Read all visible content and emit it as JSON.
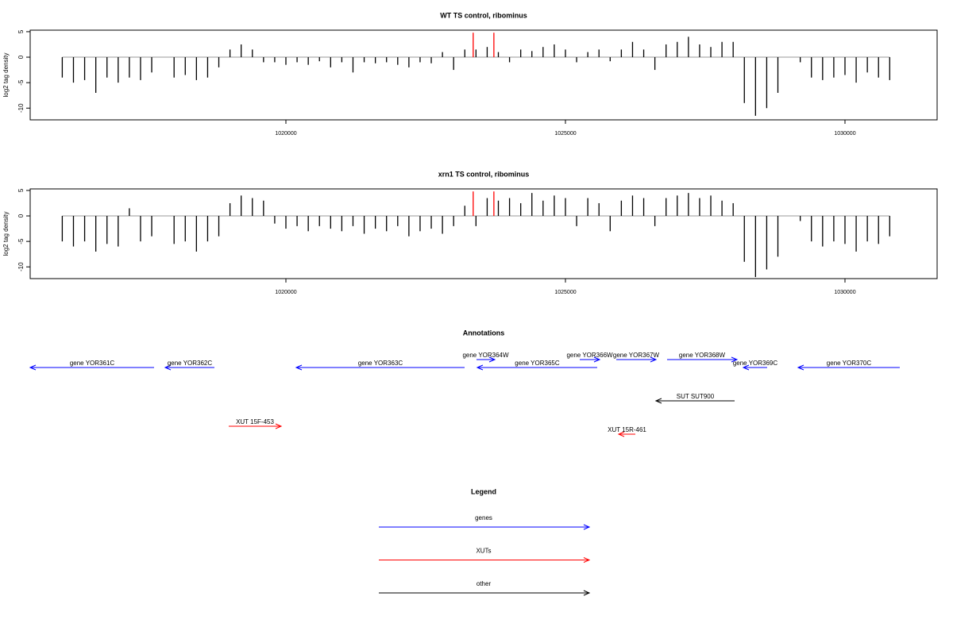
{
  "chart_data": [
    {
      "type": "bar",
      "title": "WT TS control, ribominus",
      "y_label": "log2 tag density",
      "xlim": [
        1015426,
        1031648
      ],
      "xticks": [
        1020000,
        1025000,
        1030000
      ],
      "ylim": [
        -12.3,
        5.3
      ],
      "yticks": [
        5,
        0,
        -5,
        -10
      ],
      "series": [
        {
          "color": "#000000",
          "x": [
            1016000,
            1016200,
            1016400,
            1016600,
            1016800,
            1017000,
            1017200,
            1017400,
            1017600,
            1017800,
            1018000,
            1018200,
            1018400,
            1018600,
            1018800,
            1019000,
            1019200,
            1019400,
            1019600,
            1019800,
            1020000,
            1020200,
            1020400,
            1020600,
            1020800,
            1021000,
            1021200,
            1021400,
            1021600,
            1021800,
            1022000,
            1022200,
            1022400,
            1022600,
            1022800,
            1023000,
            1023200,
            1023400,
            1023600,
            1023800,
            1024000,
            1024200,
            1024400,
            1024600,
            1024800,
            1025000,
            1025200,
            1025400,
            1025600,
            1025800,
            1026000,
            1026200,
            1026400,
            1026600,
            1026800,
            1027000,
            1027200,
            1027400,
            1027600,
            1027800,
            1028000,
            1028200,
            1028400,
            1028600,
            1028800,
            1029000,
            1029200,
            1029400,
            1029600,
            1029800,
            1030000,
            1030200,
            1030400,
            1030600,
            1030800
          ],
          "values": [
            -4,
            -5,
            -4.5,
            -7,
            -4,
            -5,
            -4,
            -4.5,
            -3,
            0,
            -4,
            -3.5,
            -4.5,
            -4,
            -2,
            1.5,
            2.5,
            1.5,
            -1,
            -1,
            -1.5,
            -1,
            -1.5,
            -0.8,
            -2,
            -1,
            -3,
            -1,
            -1.2,
            -1,
            -1.5,
            -2,
            -1,
            -1.2,
            1,
            -2.5,
            1.5,
            1.5,
            2,
            1,
            -1,
            1.5,
            1.2,
            2,
            2.5,
            1.5,
            -1,
            1,
            1.5,
            -0.8,
            1.5,
            3,
            1.5,
            -2.5,
            2.5,
            3,
            4,
            2.5,
            2,
            3,
            3,
            -9,
            -11.5,
            -10,
            -7,
            0,
            -1,
            -4,
            -4.5,
            -4,
            -3.5,
            -5,
            -3,
            -4,
            -4.5
          ]
        },
        {
          "color": "#ff0000",
          "x": [
            1023350,
            1023720
          ],
          "values": [
            4.8,
            4.8
          ]
        }
      ]
    },
    {
      "type": "bar",
      "title": "xrn1 TS control, ribominus",
      "y_label": "log2 tag density",
      "xlim": [
        1015426,
        1031648
      ],
      "xticks": [
        1020000,
        1025000,
        1030000
      ],
      "ylim": [
        -12.3,
        5.3
      ],
      "yticks": [
        5,
        0,
        -5,
        -10
      ],
      "series": [
        {
          "color": "#000000",
          "x": [
            1016000,
            1016200,
            1016400,
            1016600,
            1016800,
            1017000,
            1017200,
            1017400,
            1017600,
            1017800,
            1018000,
            1018200,
            1018400,
            1018600,
            1018800,
            1019000,
            1019200,
            1019400,
            1019600,
            1019800,
            1020000,
            1020200,
            1020400,
            1020600,
            1020800,
            1021000,
            1021200,
            1021400,
            1021600,
            1021800,
            1022000,
            1022200,
            1022400,
            1022600,
            1022800,
            1023000,
            1023200,
            1023400,
            1023600,
            1023800,
            1024000,
            1024200,
            1024400,
            1024600,
            1024800,
            1025000,
            1025200,
            1025400,
            1025600,
            1025800,
            1026000,
            1026200,
            1026400,
            1026600,
            1026800,
            1027000,
            1027200,
            1027400,
            1027600,
            1027800,
            1028000,
            1028200,
            1028400,
            1028600,
            1028800,
            1029000,
            1029200,
            1029400,
            1029600,
            1029800,
            1030000,
            1030200,
            1030400,
            1030600,
            1030800
          ],
          "values": [
            -5,
            -6,
            -5,
            -7,
            -5.5,
            -6,
            1.5,
            -5,
            -4,
            0,
            -5.5,
            -5,
            -7,
            -5,
            -4,
            2.5,
            4,
            3.5,
            3,
            -1.5,
            -2.5,
            -2,
            -3,
            -2,
            -2.5,
            -3,
            -2,
            -3.5,
            -2.5,
            -3,
            -2,
            -4,
            -3,
            -2.5,
            -3.5,
            -2,
            2,
            -2,
            3.5,
            3,
            3.5,
            2.5,
            4.5,
            3,
            4,
            3.5,
            -2,
            3.5,
            2.5,
            -3,
            3,
            4,
            3.5,
            -2,
            3.5,
            4,
            4.5,
            3.5,
            4,
            3,
            2.5,
            -9,
            -12,
            -10.5,
            -8,
            0,
            -1,
            -5,
            -6,
            -5,
            -5.5,
            -7,
            -5,
            -5.5,
            -4
          ]
        },
        {
          "color": "#ff0000",
          "x": [
            1023350,
            1023720
          ],
          "values": [
            4.8,
            4.8
          ]
        }
      ]
    },
    {
      "type": "annotation",
      "title": "Annotations",
      "xlim": [
        1015426,
        1031648
      ],
      "features": [
        {
          "label": "gene YOR361C",
          "class": 0,
          "strand": "-",
          "start": 1015426,
          "end": 1017642
        },
        {
          "label": "gene YOR362C",
          "class": 0,
          "strand": "-",
          "start": 1017841,
          "end": 1018721
        },
        {
          "label": "gene YOR363C",
          "class": 0,
          "strand": "-",
          "start": 1020185,
          "end": 1023196
        },
        {
          "label": "gene YOR364W",
          "class": 0,
          "strand": "+",
          "start": 1023409,
          "end": 1023736
        },
        {
          "label": "gene YOR365C",
          "class": 0,
          "strand": "-",
          "start": 1023423,
          "end": 1025568
        },
        {
          "label": "gene YOR366W",
          "class": 0,
          "strand": "+",
          "start": 1025256,
          "end": 1025611
        },
        {
          "label": "gene YOR367W",
          "class": 0,
          "strand": "+",
          "start": 1025909,
          "end": 1026619
        },
        {
          "label": "gene YOR368W",
          "class": 0,
          "strand": "+",
          "start": 1026818,
          "end": 1028068
        },
        {
          "label": "gene YOR369C",
          "class": 0,
          "strand": "-",
          "start": 1028182,
          "end": 1028608
        },
        {
          "label": "gene YOR370C",
          "class": 0,
          "strand": "-",
          "start": 1029162,
          "end": 1030980
        },
        {
          "label": "SUT SUT900",
          "class": 2,
          "strand": "-",
          "start": 1026619,
          "end": 1028026
        },
        {
          "label": "XUT 15F-453",
          "class": 1,
          "strand": "+",
          "start": 1018977,
          "end": 1019915
        },
        {
          "label": "XUT 15R-461",
          "class": 1,
          "strand": "-",
          "start": 1025952,
          "end": 1026250
        }
      ],
      "legend": {
        "title": "Legend",
        "entries": [
          {
            "name": "genes",
            "color": "#0000ff"
          },
          {
            "name": "XUTs",
            "color": "#ff0000"
          },
          {
            "name": "other",
            "color": "#000000"
          }
        ]
      }
    }
  ]
}
